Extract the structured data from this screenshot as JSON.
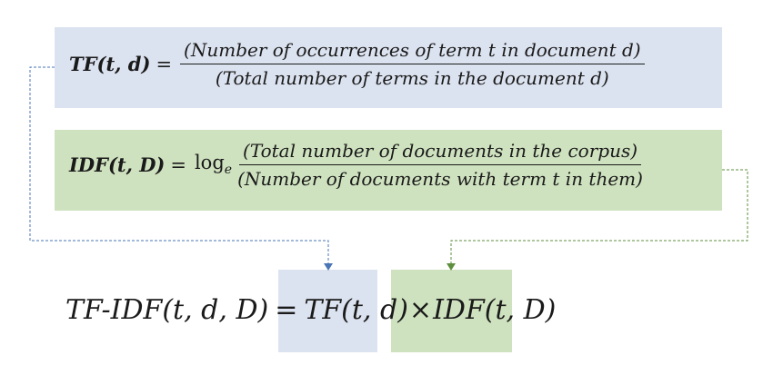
{
  "tf_formula": {
    "lhs_name": "TF",
    "lhs_args": "(t, d)",
    "equals": "=",
    "numerator": "(Number of occurrences of term t in document d)",
    "denominator": "(Total number of terms in the document d)"
  },
  "idf_formula": {
    "lhs_name": "IDF",
    "lhs_args": "(t, D)",
    "equals": "=",
    "log": "log",
    "log_base": "e",
    "numerator": "(Total number of documents in the corpus)",
    "denominator": "(Number of documents with term t in them)"
  },
  "result_formula": {
    "lhs": "TF-IDF(t, d, D)",
    "equals": "=",
    "tf_term": "TF(t, d)",
    "times": "×",
    "idf_term": "IDF(t, D)"
  },
  "colors": {
    "tf_box": "#dce3f0",
    "idf_box": "#cfe2bf",
    "tf_connector": "#4a76b5",
    "idf_connector": "#5e8f3c"
  }
}
